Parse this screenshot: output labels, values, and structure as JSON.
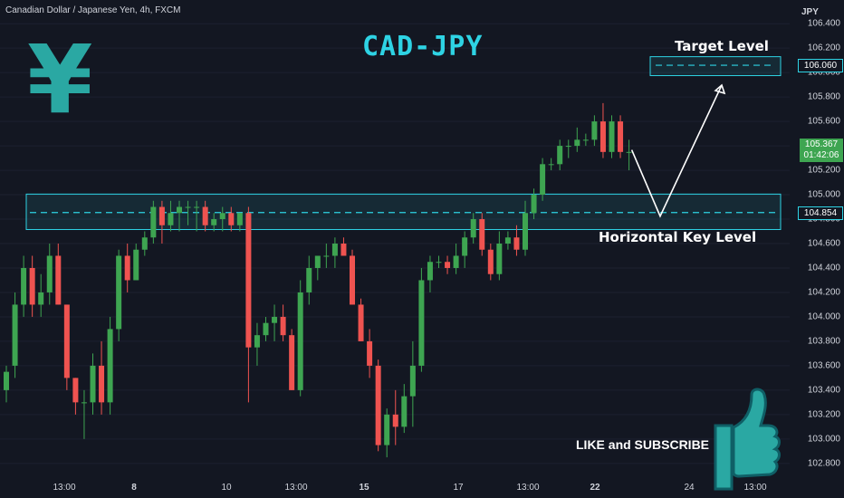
{
  "symbol_header": "Canadian Dollar / Japanese Yen, 4h, FXCM",
  "currency_label": "JPY",
  "yen_symbol": "¥",
  "title": "CAD-JPY",
  "annotations": {
    "target": "Target Level",
    "key": "Horizontal Key Level",
    "cta": "LIKE and SUBSCRIBE"
  },
  "price_tags": {
    "target": "106.060",
    "current": "105.367",
    "countdown": "01:42:06",
    "key": "104.854"
  },
  "colors": {
    "background": "#131722",
    "up": "#26a69a",
    "up_fill": "#3ea551",
    "down": "#ef5350",
    "accent": "#2ed3e4",
    "zone_border": "#2ed3e4"
  },
  "chart_data": {
    "type": "candlestick",
    "y_ticks": [
      "106.400",
      "106.200",
      "106.000",
      "105.800",
      "105.600",
      "105.400",
      "105.200",
      "105.000",
      "104.800",
      "104.600",
      "104.400",
      "104.200",
      "104.000",
      "103.800",
      "103.600",
      "103.400",
      "103.200",
      "103.000",
      "102.800"
    ],
    "x_ticks": [
      {
        "label": "13:00",
        "bold": false
      },
      {
        "label": "8",
        "bold": true
      },
      {
        "label": "10",
        "bold": false
      },
      {
        "label": "13:00",
        "bold": false
      },
      {
        "label": "15",
        "bold": true
      },
      {
        "label": "17",
        "bold": false
      },
      {
        "label": "13:00",
        "bold": false
      },
      {
        "label": "22",
        "bold": true
      },
      {
        "label": "24",
        "bold": false
      },
      {
        "label": "13:00",
        "bold": false
      }
    ],
    "ylim": [
      102.68,
      106.52
    ],
    "key_zone": [
      104.715,
      105.005
    ],
    "key_level": 104.854,
    "target_zone": [
      105.975,
      106.13
    ],
    "target_level": 106.06,
    "current_price": 105.367,
    "projection": [
      [
        105.367,
        0
      ],
      [
        104.854,
        1
      ],
      [
        106.0,
        2
      ]
    ],
    "candles": [
      [
        103.4,
        103.6,
        103.3,
        103.55
      ],
      [
        103.6,
        104.2,
        103.5,
        104.1
      ],
      [
        104.1,
        104.5,
        104.0,
        104.4
      ],
      [
        104.4,
        104.5,
        104.0,
        104.1
      ],
      [
        104.1,
        104.35,
        104.0,
        104.2
      ],
      [
        104.2,
        104.6,
        104.1,
        104.5
      ],
      [
        104.5,
        104.6,
        104.1,
        104.1
      ],
      [
        104.1,
        104.1,
        103.4,
        103.5
      ],
      [
        103.5,
        103.5,
        103.2,
        103.3
      ],
      [
        103.3,
        103.4,
        103.0,
        103.3
      ],
      [
        103.3,
        103.7,
        103.2,
        103.6
      ],
      [
        103.6,
        103.8,
        103.2,
        103.3
      ],
      [
        103.3,
        104.0,
        103.2,
        103.9
      ],
      [
        103.9,
        104.55,
        103.8,
        104.5
      ],
      [
        104.5,
        104.6,
        104.2,
        104.3
      ],
      [
        104.3,
        104.6,
        104.3,
        104.55
      ],
      [
        104.55,
        104.7,
        104.5,
        104.65
      ],
      [
        104.65,
        104.95,
        104.6,
        104.9
      ],
      [
        104.9,
        104.95,
        104.6,
        104.75
      ],
      [
        104.75,
        104.95,
        104.7,
        104.85
      ],
      [
        104.85,
        104.95,
        104.7,
        104.9
      ],
      [
        104.9,
        104.95,
        104.75,
        104.9
      ],
      [
        104.9,
        104.95,
        104.7,
        104.9
      ],
      [
        104.9,
        104.95,
        104.7,
        104.75
      ],
      [
        104.75,
        104.85,
        104.7,
        104.8
      ],
      [
        104.8,
        104.9,
        104.7,
        104.85
      ],
      [
        104.85,
        104.9,
        104.7,
        104.75
      ],
      [
        104.75,
        104.85,
        104.7,
        104.85
      ],
      [
        104.85,
        104.9,
        103.3,
        103.75
      ],
      [
        103.75,
        103.95,
        103.6,
        103.85
      ],
      [
        103.85,
        104.0,
        103.8,
        103.95
      ],
      [
        103.95,
        104.1,
        103.8,
        104.0
      ],
      [
        104.0,
        104.1,
        103.8,
        103.85
      ],
      [
        103.85,
        103.9,
        103.4,
        103.4
      ],
      [
        103.4,
        104.3,
        103.35,
        104.2
      ],
      [
        104.2,
        104.5,
        104.1,
        104.4
      ],
      [
        104.4,
        104.5,
        104.3,
        104.5
      ],
      [
        104.5,
        104.6,
        104.4,
        104.5
      ],
      [
        104.5,
        104.65,
        104.4,
        104.6
      ],
      [
        104.6,
        104.65,
        104.5,
        104.5
      ],
      [
        104.5,
        104.55,
        104.1,
        104.1
      ],
      [
        104.1,
        104.15,
        103.8,
        103.8
      ],
      [
        103.8,
        103.9,
        103.5,
        103.6
      ],
      [
        103.6,
        103.65,
        102.9,
        102.95
      ],
      [
        102.95,
        103.25,
        102.85,
        103.2
      ],
      [
        103.2,
        103.4,
        102.95,
        103.1
      ],
      [
        103.1,
        103.45,
        103.05,
        103.35
      ],
      [
        103.35,
        103.8,
        103.1,
        103.6
      ],
      [
        103.6,
        104.4,
        103.55,
        104.3
      ],
      [
        104.3,
        104.5,
        104.2,
        104.45
      ],
      [
        104.45,
        104.5,
        104.4,
        104.45
      ],
      [
        104.45,
        104.5,
        104.35,
        104.4
      ],
      [
        104.4,
        104.6,
        104.35,
        104.5
      ],
      [
        104.5,
        104.7,
        104.4,
        104.65
      ],
      [
        104.65,
        104.85,
        104.6,
        104.8
      ],
      [
        104.8,
        104.85,
        104.5,
        104.55
      ],
      [
        104.55,
        104.6,
        104.3,
        104.35
      ],
      [
        104.35,
        104.7,
        104.3,
        104.6
      ],
      [
        104.6,
        104.7,
        104.55,
        104.65
      ],
      [
        104.65,
        104.75,
        104.5,
        104.55
      ],
      [
        104.55,
        104.95,
        104.5,
        104.85
      ],
      [
        104.85,
        105.05,
        104.8,
        105.0
      ],
      [
        105.0,
        105.3,
        104.95,
        105.25
      ],
      [
        105.25,
        105.3,
        105.2,
        105.25
      ],
      [
        105.25,
        105.45,
        105.2,
        105.4
      ],
      [
        105.4,
        105.45,
        105.3,
        105.4
      ],
      [
        105.4,
        105.55,
        105.35,
        105.45
      ],
      [
        105.45,
        105.5,
        105.4,
        105.45
      ],
      [
        105.45,
        105.65,
        105.4,
        105.6
      ],
      [
        105.6,
        105.75,
        105.3,
        105.35
      ],
      [
        105.35,
        105.65,
        105.3,
        105.6
      ],
      [
        105.6,
        105.65,
        105.3,
        105.35
      ],
      [
        105.35,
        105.45,
        105.2,
        105.35
      ]
    ]
  }
}
